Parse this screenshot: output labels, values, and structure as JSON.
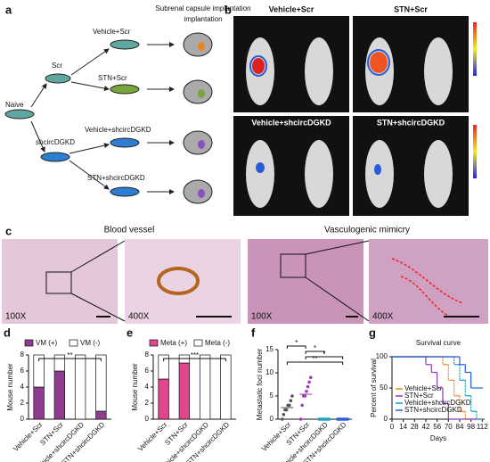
{
  "panel_a": {
    "label": "a",
    "title": "Subrenal capsule implantation",
    "naive": "Naive",
    "branches": [
      "Scr",
      "shcircDGKD"
    ],
    "groups": [
      "Vehicle+Scr",
      "STN+Scr",
      "Vehicle+shcircDGKD",
      "STN+shcircDGKD"
    ]
  },
  "panel_b": {
    "label": "b",
    "groups": [
      "Vehicle+Scr",
      "STN+Scr",
      "Vehicle+shcircDGKD",
      "STN+shcircDGKD"
    ]
  },
  "panel_c": {
    "label": "c",
    "titles": [
      "Blood vessel",
      "Vasculogenic mimicry"
    ],
    "magnifications": [
      "100X",
      "400X",
      "100X",
      "400X"
    ]
  },
  "panel_labels": [
    "d",
    "e",
    "f",
    "g"
  ],
  "chart_data": [
    {
      "type": "stacked_bar",
      "ylabel": "Mouse number",
      "categories": [
        "Vehicle+Scr",
        "STN+Scr",
        "Vehicle+shcircDGKD",
        "STN+shcircDGKD"
      ],
      "series": [
        {
          "name": "VM (+)",
          "color": "#8e3d8e",
          "values": [
            4,
            6,
            0,
            1
          ]
        },
        {
          "name": "VM (-)",
          "color": "#ffffff",
          "values": [
            4,
            2,
            8,
            7
          ]
        }
      ],
      "ylim": [
        0,
        8
      ],
      "yticks": [
        0,
        2,
        4,
        6,
        8
      ],
      "annotations": [
        "**"
      ]
    },
    {
      "type": "stacked_bar",
      "ylabel": "Mouse number",
      "categories": [
        "Vehicle+Scr",
        "STN+Scr",
        "Vehicle+shcircDGKD",
        "STN+shcircDGKD"
      ],
      "series": [
        {
          "name": "Meta (+)",
          "color": "#e0468c",
          "values": [
            5,
            7,
            0,
            0
          ]
        },
        {
          "name": "Meta (-)",
          "color": "#ffffff",
          "values": [
            3,
            1,
            8,
            8
          ]
        }
      ],
      "ylim": [
        0,
        8
      ],
      "yticks": [
        0,
        2,
        4,
        6,
        8
      ],
      "annotations": [
        "***"
      ]
    },
    {
      "type": "dot_plot",
      "ylabel": "Metastatic foci number",
      "categories": [
        "Vehicle+Scr",
        "STN+Scr",
        "Vehicle+shcircDGKD",
        "STN+shcircDGKD"
      ],
      "colors": [
        "#555555",
        "#9b3fb0",
        "#1aa3b8",
        "#2a5bd7"
      ],
      "values": [
        [
          0,
          1,
          2,
          2,
          3,
          3,
          4,
          5
        ],
        [
          0,
          3,
          5,
          5,
          6,
          7,
          8,
          9
        ],
        [
          0,
          0,
          0,
          0,
          0,
          0,
          0,
          0
        ],
        [
          0,
          0,
          0,
          0,
          0,
          0,
          0,
          0
        ]
      ],
      "ylim": [
        0,
        15
      ],
      "yticks": [
        0,
        5,
        10,
        15
      ],
      "annotations": [
        "*",
        "*",
        "*",
        "**"
      ]
    },
    {
      "type": "step_line",
      "title": "Survival curve",
      "xlabel": "Days",
      "ylabel": "Percent of survival",
      "series": [
        {
          "name": "Vehicle+Scr",
          "color": "#f08a24",
          "x": [
            0,
            63,
            70,
            77,
            84,
            91
          ],
          "values": [
            100,
            87.5,
            62.5,
            37.5,
            12.5,
            0
          ]
        },
        {
          "name": "STN+Scr",
          "color": "#8e3db0",
          "x": [
            0,
            42,
            49,
            56,
            63,
            70
          ],
          "values": [
            100,
            87.5,
            75,
            50,
            25,
            0
          ]
        },
        {
          "name": "Vehicle+shcircDGKD",
          "color": "#1aa3b8",
          "x": [
            0,
            77,
            84,
            91,
            98,
            105
          ],
          "values": [
            100,
            87.5,
            62.5,
            37.5,
            12.5,
            0
          ]
        },
        {
          "name": "STN+shcircDGKD",
          "color": "#2a5bd7",
          "x": [
            0,
            84,
            91,
            98,
            112
          ],
          "values": [
            100,
            87.5,
            75,
            50,
            50
          ]
        }
      ],
      "xlim": [
        0,
        115
      ],
      "xticks": [
        0,
        14,
        28,
        42,
        56,
        70,
        84,
        98,
        112
      ],
      "ylim": [
        0,
        100
      ],
      "yticks": [
        0,
        50,
        100
      ]
    }
  ]
}
